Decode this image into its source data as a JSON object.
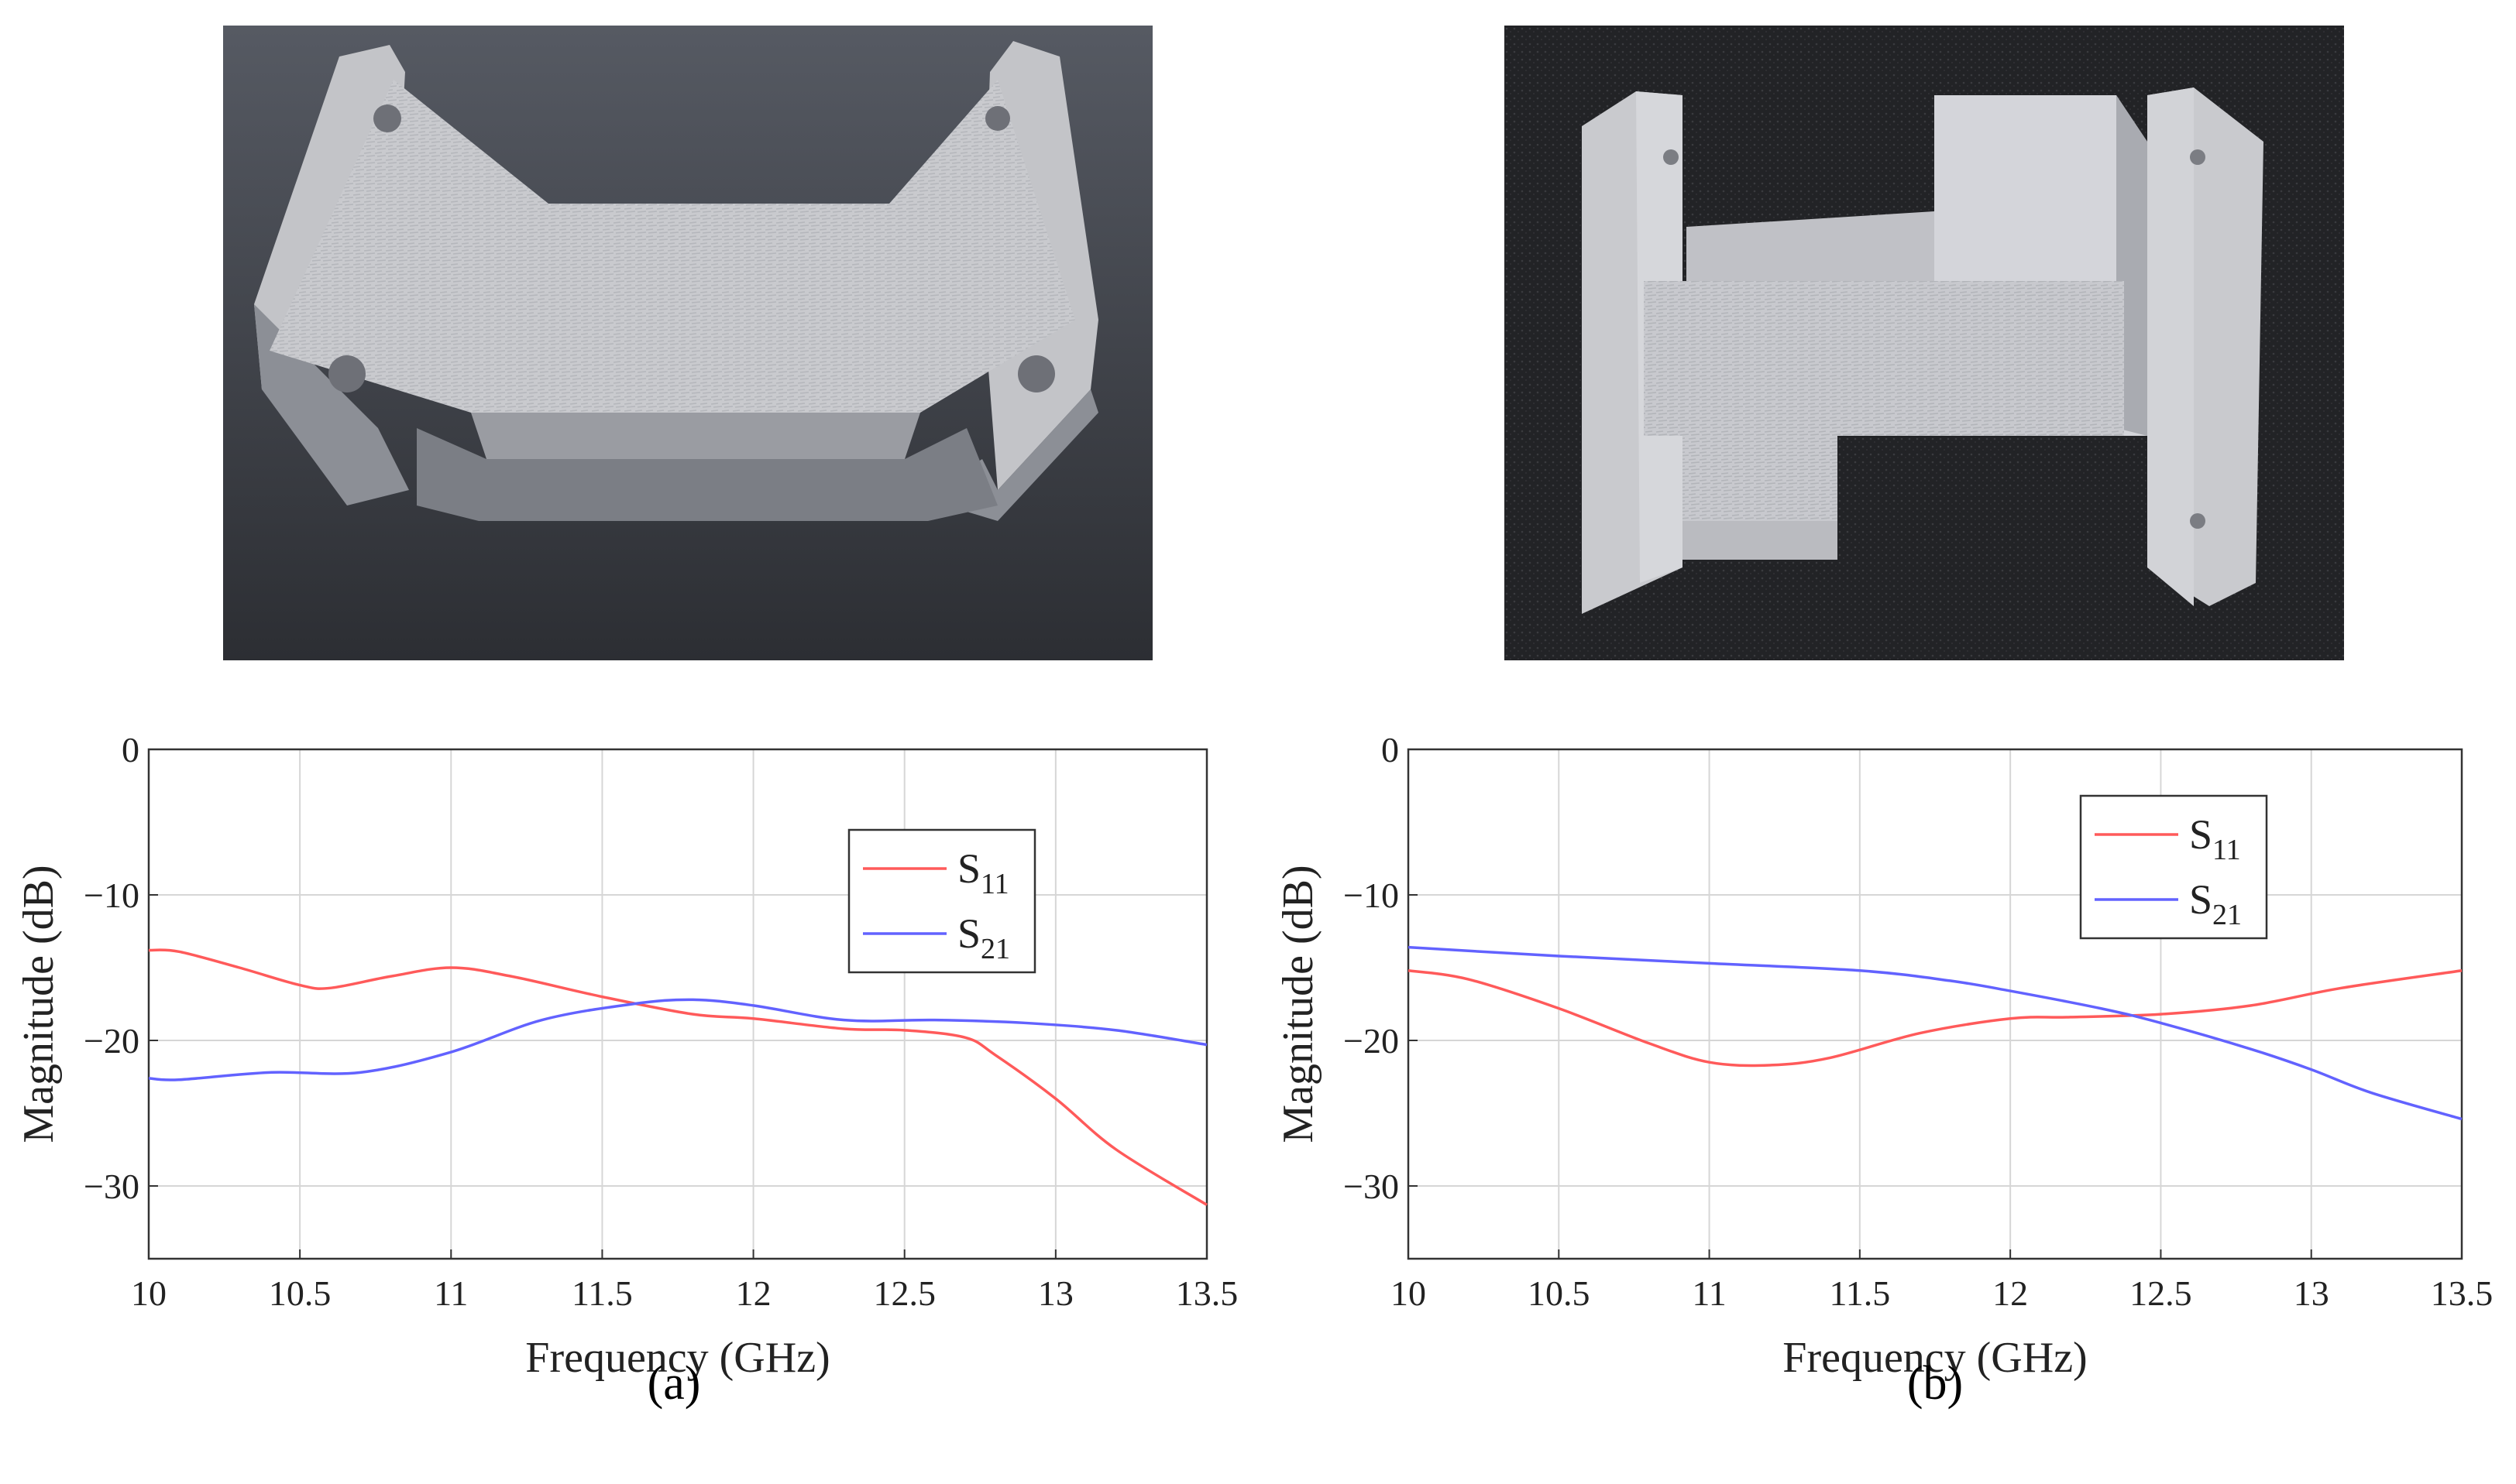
{
  "figure": {
    "panel_labels": [
      "(a)",
      "(b)"
    ]
  },
  "photos": {
    "a": {
      "kind": "photo",
      "subject": "3D-printed waveguide part with tapered flanges"
    },
    "b": {
      "kind": "photo",
      "subject": "3D-printed stepped waveguide part with end flanges"
    }
  },
  "colors": {
    "s11": "#ff5a5a",
    "s21": "#6262ff",
    "grid": "#d6d6d6",
    "axis": "#333333"
  },
  "chart_data": [
    {
      "type": "line",
      "panel": "(a)",
      "xlabel": "Frequency (GHz)",
      "ylabel": "Magnitude (dB)",
      "xlim": [
        10,
        13.5
      ],
      "ylim": [
        -35,
        0
      ],
      "xticks": [
        10,
        10.5,
        11,
        11.5,
        12,
        12.5,
        13,
        13.5
      ],
      "xtick_labels": [
        "10",
        "10.5",
        "11",
        "11.5",
        "12",
        "12.5",
        "13",
        "13.5"
      ],
      "yticks": [
        0,
        -10,
        -20,
        -30
      ],
      "ytick_labels": [
        "0",
        "−10",
        "−20",
        "−30"
      ],
      "grid": true,
      "legend": "upper-right",
      "series": [
        {
          "name": "S11",
          "label_main": "S",
          "label_sub": "11",
          "color": "#ff5a5a",
          "x": [
            10,
            10.1,
            10.3,
            10.5,
            10.6,
            10.8,
            11,
            11.2,
            11.5,
            11.8,
            12,
            12.3,
            12.5,
            12.7,
            12.8,
            13,
            13.2,
            13.5
          ],
          "y": [
            -13.8,
            -13.9,
            -15,
            -16.2,
            -16.4,
            -15.6,
            -15,
            -15.6,
            -17,
            -18.2,
            -18.5,
            -19.2,
            -19.3,
            -19.8,
            -21,
            -24,
            -27.5,
            -31.3
          ]
        },
        {
          "name": "S21",
          "label_main": "S",
          "label_sub": "21",
          "color": "#6262ff",
          "x": [
            10,
            10.1,
            10.4,
            10.7,
            11,
            11.3,
            11.6,
            11.8,
            12,
            12.3,
            12.6,
            12.9,
            13.2,
            13.5
          ],
          "y": [
            -22.6,
            -22.7,
            -22.2,
            -22.2,
            -20.8,
            -18.6,
            -17.5,
            -17.2,
            -17.6,
            -18.6,
            -18.6,
            -18.8,
            -19.3,
            -20.3
          ]
        }
      ]
    },
    {
      "type": "line",
      "panel": "(b)",
      "xlabel": "Frequency (GHz)",
      "ylabel": "Magnitude (dB)",
      "xlim": [
        10,
        13.5
      ],
      "ylim": [
        -35,
        0
      ],
      "xticks": [
        10,
        10.5,
        11,
        11.5,
        12,
        12.5,
        13,
        13.5
      ],
      "xtick_labels": [
        "10",
        "10.5",
        "11",
        "11.5",
        "12",
        "12.5",
        "13",
        "13.5"
      ],
      "yticks": [
        0,
        -10,
        -20,
        -30
      ],
      "ytick_labels": [
        "0",
        "−10",
        "−20",
        "−30"
      ],
      "grid": true,
      "legend": "upper-right",
      "series": [
        {
          "name": "S11",
          "label_main": "S",
          "label_sub": "11",
          "color": "#ff5a5a",
          "x": [
            10,
            10.2,
            10.5,
            10.8,
            11,
            11.2,
            11.4,
            11.7,
            12,
            12.2,
            12.5,
            12.8,
            13.1,
            13.5
          ],
          "y": [
            -15.2,
            -15.8,
            -17.8,
            -20.2,
            -21.5,
            -21.7,
            -21.2,
            -19.5,
            -18.5,
            -18.4,
            -18.2,
            -17.6,
            -16.4,
            -15.2
          ]
        },
        {
          "name": "S21",
          "label_main": "S",
          "label_sub": "21",
          "color": "#6262ff",
          "x": [
            10,
            10.5,
            11,
            11.5,
            11.8,
            12,
            12.3,
            12.5,
            12.8,
            13,
            13.2,
            13.5
          ],
          "y": [
            -13.6,
            -14.2,
            -14.7,
            -15.2,
            -15.9,
            -16.6,
            -17.8,
            -18.8,
            -20.6,
            -22,
            -23.6,
            -25.4
          ]
        }
      ]
    }
  ]
}
